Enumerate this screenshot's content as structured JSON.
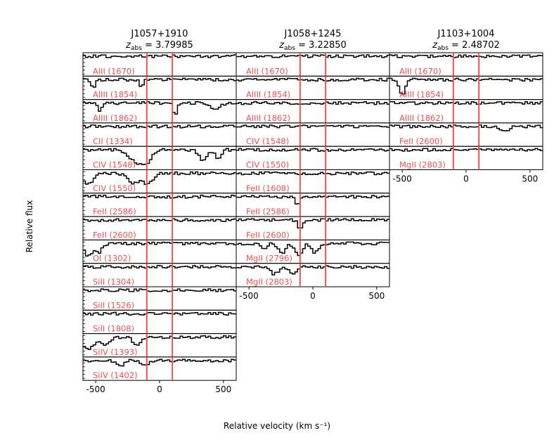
{
  "chart_data": {
    "type": "line",
    "xlabel": "Relative velocity (km s⁻¹)",
    "ylabel": "Relative flux",
    "xlim": [
      -600,
      600
    ],
    "colors": {
      "marker": "#f05050",
      "label": "#f05050",
      "spectrum": "#000000"
    },
    "panels": [
      {
        "quasar": "J1057+1910",
        "zabs_label": "z",
        "zabs_sub": "abs",
        "zabs_value": "= 3.79985",
        "markers": [
          -100,
          100
        ],
        "xticks": [
          "-500",
          "0",
          "500"
        ],
        "rows": [
          {
            "label": "AlII (1670)",
            "features": []
          },
          {
            "label": "AlIII (1854)",
            "features": [
              [
                -520,
                0.5,
                20
              ],
              [
                -140,
                0.4,
                20
              ]
            ]
          },
          {
            "label": "AlIII (1862)",
            "features": [
              [
                -470,
                0.5,
                20
              ],
              [
                120,
                0.7,
                20
              ],
              [
                430,
                0.3,
                60
              ]
            ]
          },
          {
            "label": "CII (1334)",
            "features": []
          },
          {
            "label": "CIV (1548)",
            "features": [
              [
                -180,
                0.7,
                80
              ],
              [
                -100,
                0.55,
                50
              ],
              [
                340,
                0.6,
                45
              ],
              [
                460,
                0.5,
                30
              ]
            ]
          },
          {
            "label": "CIV (1550)",
            "features": [
              [
                -560,
                0.6,
                60
              ],
              [
                -200,
                0.55,
                70
              ],
              [
                -90,
                0.6,
                50
              ]
            ]
          },
          {
            "label": "FeII (2586)",
            "features": []
          },
          {
            "label": "FeII (2600)",
            "features": []
          },
          {
            "label": "OI (1302)",
            "features": [
              [
                -560,
                0.7,
                40
              ],
              [
                -480,
                0.5,
                40
              ]
            ]
          },
          {
            "label": "SiII (1304)",
            "features": []
          },
          {
            "label": "SiII (1526)",
            "features": []
          },
          {
            "label": "SiII (1808)",
            "features": []
          },
          {
            "label": "SiIV (1393)",
            "features": [
              [
                -560,
                0.7,
                60
              ],
              [
                -420,
                0.4,
                50
              ],
              [
                -180,
                0.5,
                40
              ]
            ]
          },
          {
            "label": "SiIV (1402)",
            "features": [
              [
                -310,
                0.3,
                40
              ],
              [
                -120,
                0.3,
                40
              ]
            ]
          }
        ]
      },
      {
        "quasar": "J1058+1245",
        "zabs_label": "z",
        "zabs_sub": "abs",
        "zabs_value": "= 3.22850",
        "markers": [
          -100,
          100
        ],
        "xticks": [
          "-500",
          "0",
          "500"
        ],
        "rows": [
          {
            "label": "AlII (1670)",
            "features": []
          },
          {
            "label": "AlIII (1854)",
            "features": []
          },
          {
            "label": "AlIII (1862)",
            "features": []
          },
          {
            "label": "CIV (1548)",
            "features": []
          },
          {
            "label": "CIV (1550)",
            "features": []
          },
          {
            "label": "FeII (1608)",
            "features": []
          },
          {
            "label": "FeII (2586)",
            "features": [
              [
                -120,
                0.5,
                25
              ]
            ]
          },
          {
            "label": "FeII (2600)",
            "features": [
              [
                -100,
                0.5,
                25
              ]
            ]
          },
          {
            "label": "MgII (2796)",
            "features": [
              [
                -380,
                0.4,
                30
              ],
              [
                -240,
                0.6,
                40
              ],
              [
                -110,
                0.6,
                40
              ],
              [
                20,
                0.5,
                40
              ]
            ]
          },
          {
            "label": "MgII (2803)",
            "features": [
              [
                -300,
                0.4,
                40
              ],
              [
                -150,
                0.4,
                40
              ]
            ]
          }
        ]
      },
      {
        "quasar": "J1103+1004",
        "zabs_label": "z",
        "zabs_sub": "abs",
        "zabs_value": "= 2.48702",
        "markers": [
          -100,
          100
        ],
        "xticks": [
          "-500",
          "0",
          "500"
        ],
        "rows": [
          {
            "label": "AlII (1670)",
            "features": []
          },
          {
            "label": "AlIII (1854)",
            "features": [
              [
                -500,
                0.8,
                35
              ]
            ]
          },
          {
            "label": "AlIII (1862)",
            "features": []
          },
          {
            "label": "FeII (2600)",
            "features": [
              [
                300,
                0.3,
                40
              ]
            ]
          },
          {
            "label": "MgII (2803)",
            "features": []
          }
        ]
      }
    ]
  }
}
